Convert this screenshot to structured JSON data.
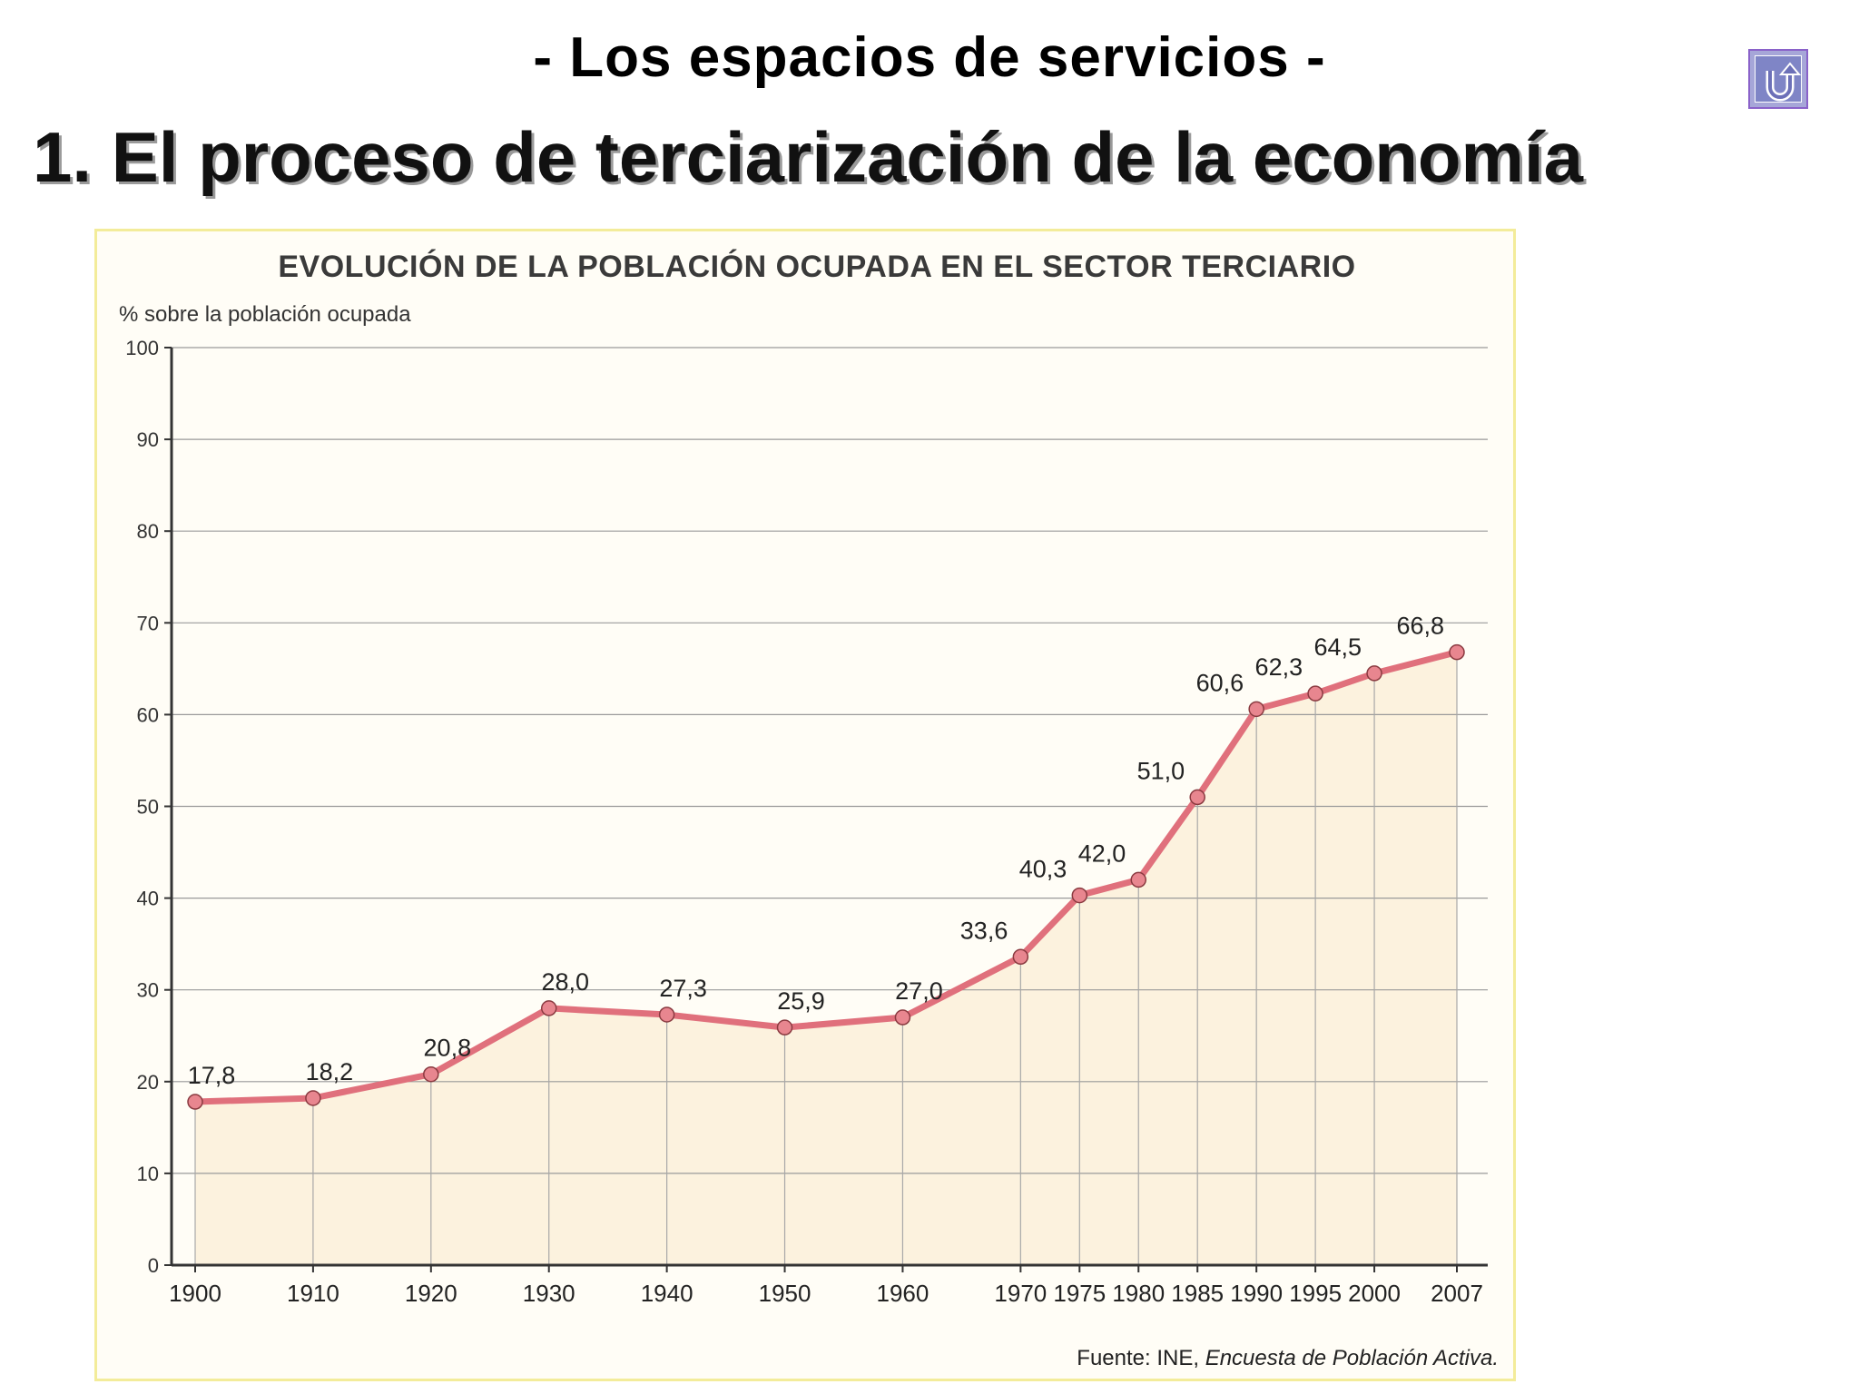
{
  "header": {
    "subtitle": "- Los espacios de servicios -",
    "title": "1. El proceso de terciarización de la economía"
  },
  "return_icon": "return-arrow-icon",
  "colors": {
    "line": "#e0707c",
    "marker": "#e8868f",
    "area": "#fbeed6",
    "panel_border": "#f3ec9a"
  },
  "chart_data": {
    "type": "line",
    "title": "EVOLUCIÓN DE LA POBLACIÓN OCUPADA EN EL SECTOR TERCIARIO",
    "ylabel": "% sobre la población ocupada",
    "xlabel": "",
    "ylim": [
      0,
      100
    ],
    "yticks": [
      0,
      10,
      20,
      30,
      40,
      50,
      60,
      70,
      80,
      90,
      100
    ],
    "grid": true,
    "x": [
      1900,
      1910,
      1920,
      1930,
      1940,
      1950,
      1960,
      1970,
      1975,
      1980,
      1985,
      1990,
      1995,
      2000,
      2007
    ],
    "x_labels": [
      "1900",
      "1910",
      "1920",
      "1930",
      "1940",
      "1950",
      "1960",
      "1970",
      "1975",
      "1980",
      "1985",
      "1990",
      "1995",
      "2000",
      "2007"
    ],
    "values": [
      17.8,
      18.2,
      20.8,
      28.0,
      27.3,
      25.9,
      27.0,
      33.6,
      40.3,
      42.0,
      51.0,
      60.6,
      62.3,
      64.5,
      66.8
    ],
    "value_labels": [
      "17,8",
      "18,2",
      "20,8",
      "28,0",
      "27,3",
      "25,9",
      "27,0",
      "33,6",
      "40,3",
      "42,0",
      "51,0",
      "60,6",
      "62,3",
      "64,5",
      "66,8"
    ],
    "source_prefix": "Fuente: INE, ",
    "source_publication": "Encuesta de Población Activa."
  }
}
